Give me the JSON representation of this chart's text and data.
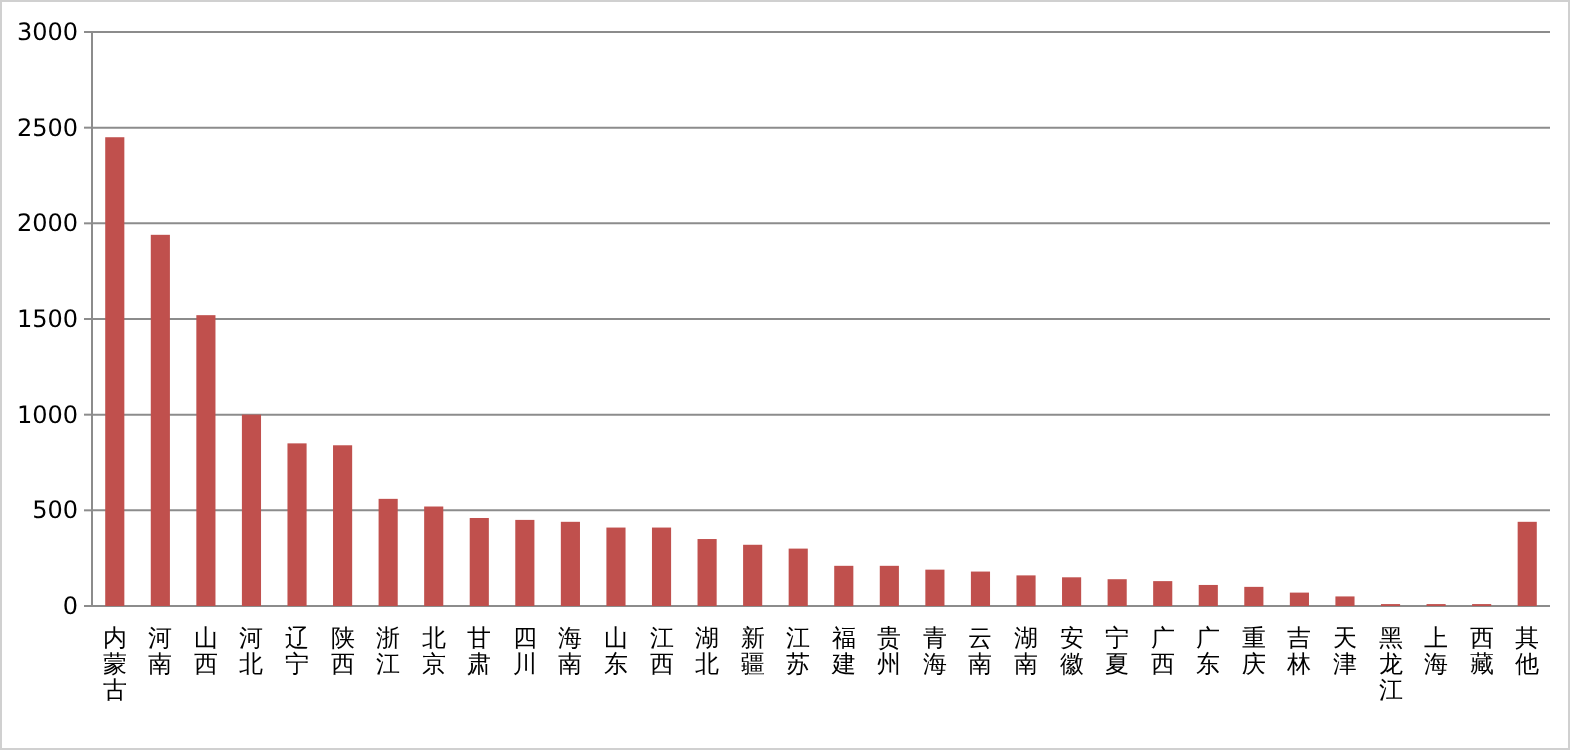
{
  "chart_data": {
    "type": "bar",
    "categories": [
      "内蒙古",
      "河南",
      "山西",
      "河北",
      "辽宁",
      "陕西",
      "浙江",
      "北京",
      "甘肃",
      "四川",
      "海南",
      "山东",
      "江西",
      "湖北",
      "新疆",
      "江苏",
      "福建",
      "贵州",
      "青海",
      "云南",
      "湖南",
      "安徽",
      "宁夏",
      "广西",
      "广东",
      "重庆",
      "吉林",
      "天津",
      "黑龙江",
      "上海",
      "西藏",
      "其他"
    ],
    "values": [
      2450,
      1940,
      1520,
      1000,
      850,
      840,
      560,
      520,
      460,
      450,
      440,
      410,
      410,
      350,
      320,
      300,
      210,
      210,
      190,
      180,
      160,
      150,
      140,
      130,
      110,
      100,
      70,
      50,
      10,
      10,
      10,
      440
    ],
    "color": "#c0504d",
    "ylim": [
      0,
      3000
    ],
    "yticks": [
      0,
      500,
      1000,
      1500,
      2000,
      2500,
      3000
    ],
    "grid": "y"
  }
}
